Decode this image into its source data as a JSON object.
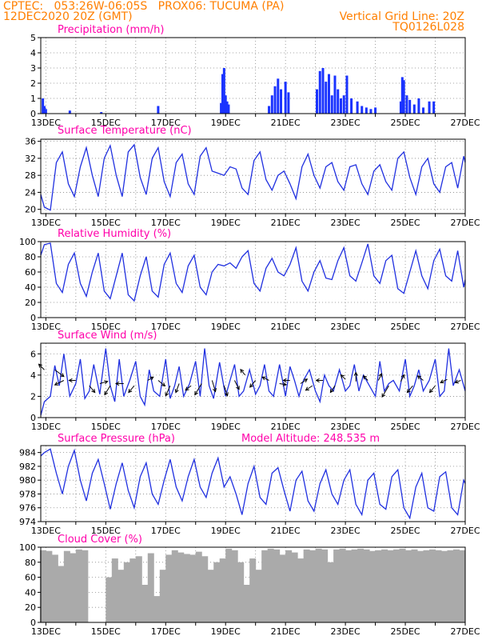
{
  "header": {
    "line1_left": "CPTEC:   053:26W-06:05S   PROX06: TUCUMA (PA)",
    "line2_left": "12DEC2020 20Z (GMT)",
    "line2_right": "Vertical Grid Line: 20Z",
    "line3_right": "TQ0126L028"
  },
  "colors": {
    "header": "#ff7f00",
    "title": "#ff00aa",
    "line": "#2030e0",
    "bar": "#1a33ff",
    "cloud": "#aaaaaa"
  },
  "chart_data": [
    {
      "type": "bar",
      "title": "Precipitation (mm/h)",
      "ylim": [
        0,
        5
      ],
      "yticks": [
        0,
        1,
        2,
        3,
        4,
        5
      ],
      "xticks": [
        "13DEC",
        "15DEC",
        "17DEC",
        "19DEC",
        "21DEC",
        "23DEC",
        "25DEC",
        "27DEC"
      ],
      "x_day_range": [
        12.83,
        27
      ],
      "x": [
        12.9,
        12.95,
        13.0,
        13.8,
        14.85,
        16.75,
        18.85,
        18.9,
        18.95,
        19.0,
        19.05,
        19.1,
        20.45,
        20.55,
        20.65,
        20.75,
        20.85,
        21.0,
        21.1,
        22.05,
        22.15,
        22.25,
        22.35,
        22.45,
        22.55,
        22.65,
        22.75,
        22.85,
        22.95,
        23.05,
        23.2,
        23.4,
        23.55,
        23.7,
        23.85,
        24.0,
        24.85,
        24.9,
        24.95,
        25.05,
        25.15,
        25.3,
        25.45,
        25.6,
        25.8,
        25.95
      ],
      "values": [
        1.0,
        0.5,
        0.3,
        0.2,
        0.1,
        0.5,
        0.7,
        2.6,
        3.0,
        1.2,
        0.8,
        0.6,
        0.5,
        1.2,
        1.8,
        2.3,
        1.6,
        2.1,
        1.4,
        1.6,
        2.8,
        3.0,
        2.1,
        2.6,
        1.2,
        2.5,
        1.6,
        1.0,
        1.2,
        2.5,
        1.0,
        0.8,
        0.5,
        0.4,
        0.3,
        0.4,
        0.8,
        2.4,
        2.2,
        1.2,
        0.9,
        0.6,
        1.0,
        0.4,
        0.8,
        0.8
      ]
    },
    {
      "type": "line",
      "title": "Surface Temperature (nC)",
      "ylim": [
        19,
        36.5
      ],
      "yticks": [
        20,
        24,
        28,
        32,
        36
      ],
      "xticks": [
        "13DEC",
        "15DEC",
        "17DEC",
        "19DEC",
        "21DEC",
        "23DEC",
        "25DEC",
        "27DEC"
      ],
      "x_day_range": [
        12.83,
        27
      ],
      "x": [
        12.83,
        12.95,
        13.15,
        13.35,
        13.55,
        13.75,
        13.95,
        14.15,
        14.35,
        14.55,
        14.75,
        14.95,
        15.15,
        15.35,
        15.55,
        15.75,
        15.95,
        16.15,
        16.35,
        16.55,
        16.75,
        16.95,
        17.15,
        17.35,
        17.55,
        17.75,
        17.95,
        18.15,
        18.35,
        18.55,
        18.75,
        18.95,
        19.15,
        19.35,
        19.55,
        19.75,
        19.95,
        20.15,
        20.35,
        20.55,
        20.75,
        20.95,
        21.15,
        21.35,
        21.55,
        21.75,
        21.95,
        22.15,
        22.35,
        22.55,
        22.75,
        22.95,
        23.15,
        23.35,
        23.55,
        23.75,
        23.95,
        24.15,
        24.35,
        24.55,
        24.75,
        24.95,
        25.15,
        25.35,
        25.55,
        25.75,
        25.95,
        26.15,
        26.35,
        26.55,
        26.75,
        26.95,
        27.0
      ],
      "values": [
        23.5,
        20.5,
        19.8,
        31.0,
        33.5,
        26.0,
        23.0,
        30.0,
        34.5,
        28.0,
        23.0,
        32.0,
        35.0,
        28.0,
        23.0,
        33.5,
        35.2,
        27.5,
        23.5,
        32.0,
        34.5,
        26.5,
        23.0,
        31.0,
        33.0,
        26.0,
        23.5,
        32.5,
        34.5,
        29.0,
        28.5,
        28.0,
        30.0,
        29.5,
        25.0,
        23.5,
        31.5,
        33.5,
        27.0,
        24.5,
        28.0,
        29.0,
        26.0,
        22.5,
        30.0,
        33.0,
        28.0,
        25.0,
        30.0,
        31.0,
        26.5,
        24.5,
        30.0,
        30.5,
        26.0,
        23.5,
        29.0,
        30.5,
        26.5,
        24.5,
        32.0,
        33.5,
        27.5,
        23.5,
        30.0,
        32.0,
        26.0,
        24.0,
        30.0,
        31.0,
        25.0,
        32.5,
        31.0
      ]
    },
    {
      "type": "line",
      "title": "Relative Humidity (%)",
      "ylim": [
        0,
        100
      ],
      "yticks": [
        0,
        20,
        40,
        60,
        80,
        100
      ],
      "xticks": [
        "13DEC",
        "15DEC",
        "17DEC",
        "19DEC",
        "21DEC",
        "23DEC",
        "25DEC",
        "27DEC"
      ],
      "x_day_range": [
        12.83,
        27
      ],
      "x": [
        12.83,
        12.95,
        13.15,
        13.35,
        13.55,
        13.75,
        13.95,
        14.15,
        14.35,
        14.55,
        14.75,
        14.95,
        15.15,
        15.35,
        15.55,
        15.75,
        15.95,
        16.15,
        16.35,
        16.55,
        16.75,
        16.95,
        17.15,
        17.35,
        17.55,
        17.75,
        17.95,
        18.15,
        18.35,
        18.55,
        18.75,
        18.95,
        19.15,
        19.35,
        19.55,
        19.75,
        19.95,
        20.15,
        20.35,
        20.55,
        20.75,
        20.95,
        21.15,
        21.35,
        21.55,
        21.75,
        21.95,
        22.15,
        22.35,
        22.55,
        22.75,
        22.95,
        23.15,
        23.35,
        23.55,
        23.75,
        23.95,
        24.15,
        24.35,
        24.55,
        24.75,
        24.95,
        25.15,
        25.35,
        25.55,
        25.75,
        25.95,
        26.15,
        26.35,
        26.55,
        26.75,
        26.95,
        27.0
      ],
      "values": [
        82,
        96,
        98,
        45,
        33,
        70,
        85,
        45,
        28,
        60,
        85,
        35,
        25,
        55,
        85,
        30,
        22,
        55,
        80,
        35,
        27,
        70,
        85,
        45,
        33,
        68,
        82,
        40,
        30,
        60,
        70,
        68,
        72,
        65,
        80,
        88,
        45,
        35,
        65,
        78,
        60,
        55,
        70,
        92,
        48,
        35,
        60,
        75,
        52,
        50,
        75,
        92,
        55,
        48,
        72,
        97,
        55,
        45,
        75,
        82,
        38,
        32,
        60,
        88,
        55,
        38,
        75,
        90,
        55,
        48,
        88,
        40,
        50
      ]
    },
    {
      "type": "line",
      "title": "Surface Wind (m/s)",
      "ylim": [
        0,
        7
      ],
      "yticks": [
        0,
        2,
        4,
        6
      ],
      "xticks": [
        "13DEC",
        "15DEC",
        "17DEC",
        "19DEC",
        "21DEC",
        "23DEC",
        "25DEC",
        "27DEC"
      ],
      "x_day_range": [
        12.83,
        27
      ],
      "x": [
        12.83,
        12.95,
        13.15,
        13.3,
        13.45,
        13.6,
        13.8,
        14.0,
        14.15,
        14.3,
        14.45,
        14.6,
        14.8,
        15.0,
        15.15,
        15.3,
        15.45,
        15.6,
        15.8,
        16.0,
        16.15,
        16.3,
        16.45,
        16.6,
        16.8,
        17.0,
        17.15,
        17.3,
        17.45,
        17.6,
        17.8,
        18.0,
        18.15,
        18.3,
        18.45,
        18.6,
        18.8,
        19.0,
        19.15,
        19.3,
        19.45,
        19.6,
        19.8,
        20.0,
        20.15,
        20.3,
        20.45,
        20.6,
        20.8,
        21.0,
        21.15,
        21.3,
        21.45,
        21.6,
        21.8,
        22.0,
        22.15,
        22.3,
        22.45,
        22.6,
        22.8,
        23.0,
        23.15,
        23.3,
        23.45,
        23.6,
        23.8,
        24.0,
        24.15,
        24.3,
        24.45,
        24.6,
        24.8,
        25.0,
        25.15,
        25.3,
        25.45,
        25.6,
        25.8,
        26.0,
        26.15,
        26.3,
        26.45,
        26.6,
        26.8,
        27.0
      ],
      "values": [
        0.2,
        1.5,
        2.0,
        4.9,
        3.0,
        6.0,
        2.0,
        3.2,
        5.5,
        1.8,
        2.5,
        5.0,
        2.2,
        6.5,
        3.0,
        1.5,
        5.5,
        2.0,
        3.5,
        5.3,
        2.0,
        1.2,
        4.5,
        2.5,
        2.0,
        5.5,
        1.8,
        3.0,
        4.8,
        2.0,
        3.2,
        5.3,
        2.0,
        6.5,
        3.0,
        1.8,
        5.2,
        2.0,
        3.5,
        5.0,
        2.0,
        2.5,
        4.5,
        2.2,
        3.0,
        5.0,
        2.5,
        2.0,
        5.0,
        2.0,
        4.8,
        3.5,
        2.0,
        3.5,
        4.5,
        2.5,
        1.5,
        4.0,
        3.0,
        2.5,
        4.5,
        2.5,
        3.0,
        5.0,
        2.5,
        4.0,
        3.0,
        2.0,
        5.3,
        2.5,
        3.2,
        3.5,
        2.5,
        5.5,
        2.0,
        3.0,
        4.5,
        2.5,
        3.5,
        5.5,
        2.0,
        2.5,
        6.5,
        3.0,
        4.5,
        2.5
      ],
      "arrows": [
        {
          "x": 12.95,
          "y": 4.5,
          "u": -0.5,
          "v": 0.5
        },
        {
          "x": 13.3,
          "y": 4.5,
          "u": 0.8,
          "v": -0.6
        },
        {
          "x": 13.6,
          "y": 3.5,
          "u": -0.8,
          "v": -0.4
        },
        {
          "x": 14.0,
          "y": 3.5,
          "u": -0.6,
          "v": 0.0
        },
        {
          "x": 14.45,
          "y": 3.0,
          "u": 0.5,
          "v": -0.6
        },
        {
          "x": 14.8,
          "y": 3.2,
          "u": 0.7,
          "v": 0.2
        },
        {
          "x": 15.15,
          "y": 3.0,
          "u": -0.5,
          "v": -0.8
        },
        {
          "x": 15.6,
          "y": 3.2,
          "u": -0.7,
          "v": 0.0
        },
        {
          "x": 15.95,
          "y": 3.0,
          "u": -0.5,
          "v": -0.6
        },
        {
          "x": 16.4,
          "y": 3.5,
          "u": 0.5,
          "v": 0.3
        },
        {
          "x": 16.75,
          "y": 3.5,
          "u": 0.6,
          "v": -0.5
        },
        {
          "x": 17.15,
          "y": 3.0,
          "u": -0.4,
          "v": -0.9
        },
        {
          "x": 17.45,
          "y": 3.2,
          "u": -0.3,
          "v": -0.8
        },
        {
          "x": 17.85,
          "y": 3.0,
          "u": -0.5,
          "v": -0.4
        },
        {
          "x": 18.2,
          "y": 3.2,
          "u": -0.6,
          "v": -1.0
        },
        {
          "x": 18.55,
          "y": 3.5,
          "u": 0.3,
          "v": -1.0
        },
        {
          "x": 18.95,
          "y": 3.0,
          "u": 0.3,
          "v": -0.9
        },
        {
          "x": 19.3,
          "y": 3.5,
          "u": 0.4,
          "v": -0.8
        },
        {
          "x": 19.65,
          "y": 4.0,
          "u": -0.4,
          "v": 0.5
        },
        {
          "x": 20.0,
          "y": 3.5,
          "u": -0.5,
          "v": -0.6
        },
        {
          "x": 20.45,
          "y": 3.5,
          "u": -0.6,
          "v": 0.3
        },
        {
          "x": 20.8,
          "y": 3.2,
          "u": 0.6,
          "v": -0.1
        },
        {
          "x": 21.15,
          "y": 3.5,
          "u": -0.6,
          "v": 0.0
        },
        {
          "x": 21.5,
          "y": 3.2,
          "u": 0.6,
          "v": 0.4
        },
        {
          "x": 21.9,
          "y": 3.0,
          "u": -0.6,
          "v": -0.4
        },
        {
          "x": 22.25,
          "y": 3.5,
          "u": -0.6,
          "v": 0.0
        },
        {
          "x": 22.65,
          "y": 3.0,
          "u": -0.4,
          "v": -0.6
        },
        {
          "x": 23.0,
          "y": 3.6,
          "u": -0.4,
          "v": 0.4
        },
        {
          "x": 23.35,
          "y": 3.4,
          "u": 0.0,
          "v": 0.8
        },
        {
          "x": 23.75,
          "y": 3.5,
          "u": -0.4,
          "v": 0.4
        },
        {
          "x": 24.1,
          "y": 3.5,
          "u": 0.3,
          "v": 0.6
        },
        {
          "x": 24.45,
          "y": 3.0,
          "u": -0.6,
          "v": -1.0
        },
        {
          "x": 24.85,
          "y": 3.4,
          "u": 0.3,
          "v": 0.6
        },
        {
          "x": 25.25,
          "y": 3.0,
          "u": -0.5,
          "v": -0.6
        },
        {
          "x": 25.6,
          "y": 3.5,
          "u": -0.5,
          "v": 0.4
        },
        {
          "x": 26.0,
          "y": 3.0,
          "u": -0.5,
          "v": -0.6
        },
        {
          "x": 26.4,
          "y": 3.6,
          "u": -0.6,
          "v": -0.3
        },
        {
          "x": 26.85,
          "y": 3.5,
          "u": -0.5,
          "v": -0.2
        }
      ]
    },
    {
      "type": "line",
      "title": "Surface Pressure (hPa)",
      "subtitle": "Model Altitude: 248.535  m",
      "ylim": [
        974,
        985
      ],
      "yticks": [
        974,
        976,
        978,
        980,
        982,
        984
      ],
      "xticks": [
        "13DEC",
        "15DEC",
        "17DEC",
        "19DEC",
        "21DEC",
        "23DEC",
        "25DEC",
        "27DEC"
      ],
      "x_day_range": [
        12.83,
        27
      ],
      "x": [
        12.83,
        12.95,
        13.15,
        13.35,
        13.55,
        13.75,
        13.95,
        14.15,
        14.35,
        14.55,
        14.75,
        14.95,
        15.15,
        15.35,
        15.55,
        15.75,
        15.95,
        16.15,
        16.35,
        16.55,
        16.75,
        16.95,
        17.15,
        17.35,
        17.55,
        17.75,
        17.95,
        18.15,
        18.35,
        18.55,
        18.75,
        18.95,
        19.15,
        19.35,
        19.55,
        19.75,
        19.95,
        20.15,
        20.35,
        20.55,
        20.75,
        20.95,
        21.15,
        21.35,
        21.55,
        21.75,
        21.95,
        22.15,
        22.35,
        22.55,
        22.75,
        22.95,
        23.15,
        23.35,
        23.55,
        23.75,
        23.95,
        24.15,
        24.35,
        24.55,
        24.75,
        24.95,
        25.15,
        25.35,
        25.55,
        25.75,
        25.95,
        26.15,
        26.35,
        26.55,
        26.75,
        26.95,
        27.0
      ],
      "values": [
        983.5,
        984.0,
        984.5,
        981.0,
        978.0,
        982.0,
        984.3,
        980.0,
        977.0,
        981.0,
        983.0,
        979.5,
        975.8,
        979.5,
        982.5,
        978.5,
        976.0,
        980.5,
        982.5,
        978.0,
        976.5,
        980.0,
        983.0,
        979.0,
        977.0,
        980.5,
        983.0,
        979.0,
        977.5,
        981.0,
        983.2,
        979.0,
        980.5,
        978.0,
        975.0,
        979.5,
        982.0,
        977.5,
        976.5,
        981.0,
        981.8,
        978.5,
        975.5,
        980.0,
        981.3,
        977.0,
        975.5,
        979.5,
        981.5,
        978.0,
        976.5,
        980.0,
        981.5,
        976.5,
        975.0,
        980.0,
        981.0,
        976.5,
        975.8,
        980.5,
        981.5,
        976.0,
        974.5,
        979.0,
        981.0,
        976.0,
        975.5,
        980.5,
        981.2,
        976.0,
        975.0,
        980.0,
        979.5
      ]
    },
    {
      "type": "bar",
      "title": "Cloud Cover (%)",
      "ylim": [
        0,
        100
      ],
      "yticks": [
        0,
        20,
        40,
        60,
        80,
        100
      ],
      "xticks": [
        "13DEC",
        "15DEC",
        "17DEC",
        "19DEC",
        "21DEC",
        "23DEC",
        "25DEC",
        "27DEC"
      ],
      "x_day_range": [
        12.83,
        27
      ],
      "x": [
        12.9,
        13.1,
        13.3,
        13.5,
        13.7,
        13.9,
        14.1,
        14.3,
        14.5,
        14.7,
        14.9,
        15.1,
        15.3,
        15.5,
        15.7,
        15.9,
        16.1,
        16.3,
        16.5,
        16.7,
        16.9,
        17.1,
        17.3,
        17.5,
        17.7,
        17.9,
        18.1,
        18.3,
        18.5,
        18.7,
        18.9,
        19.1,
        19.3,
        19.5,
        19.7,
        19.9,
        20.1,
        20.3,
        20.5,
        20.7,
        20.9,
        21.1,
        21.3,
        21.5,
        21.7,
        21.9,
        22.1,
        22.3,
        22.5,
        22.7,
        22.9,
        23.1,
        23.3,
        23.5,
        23.7,
        23.9,
        24.1,
        24.3,
        24.5,
        24.7,
        24.9,
        25.1,
        25.3,
        25.5,
        25.7,
        25.9,
        26.1,
        26.3,
        26.5,
        26.7,
        26.9
      ],
      "values": [
        96,
        95,
        90,
        75,
        95,
        92,
        97,
        96,
        0,
        0,
        0,
        60,
        85,
        70,
        80,
        85,
        88,
        50,
        92,
        35,
        70,
        90,
        96,
        93,
        91,
        90,
        94,
        88,
        70,
        80,
        85,
        98,
        96,
        80,
        50,
        85,
        70,
        96,
        98,
        97,
        90,
        96,
        93,
        85,
        97,
        96,
        98,
        97,
        80,
        97,
        98,
        96,
        97,
        98,
        97,
        95,
        96,
        97,
        96,
        97,
        98,
        96,
        97,
        95,
        96,
        97,
        96,
        95,
        96,
        97,
        96
      ]
    }
  ]
}
